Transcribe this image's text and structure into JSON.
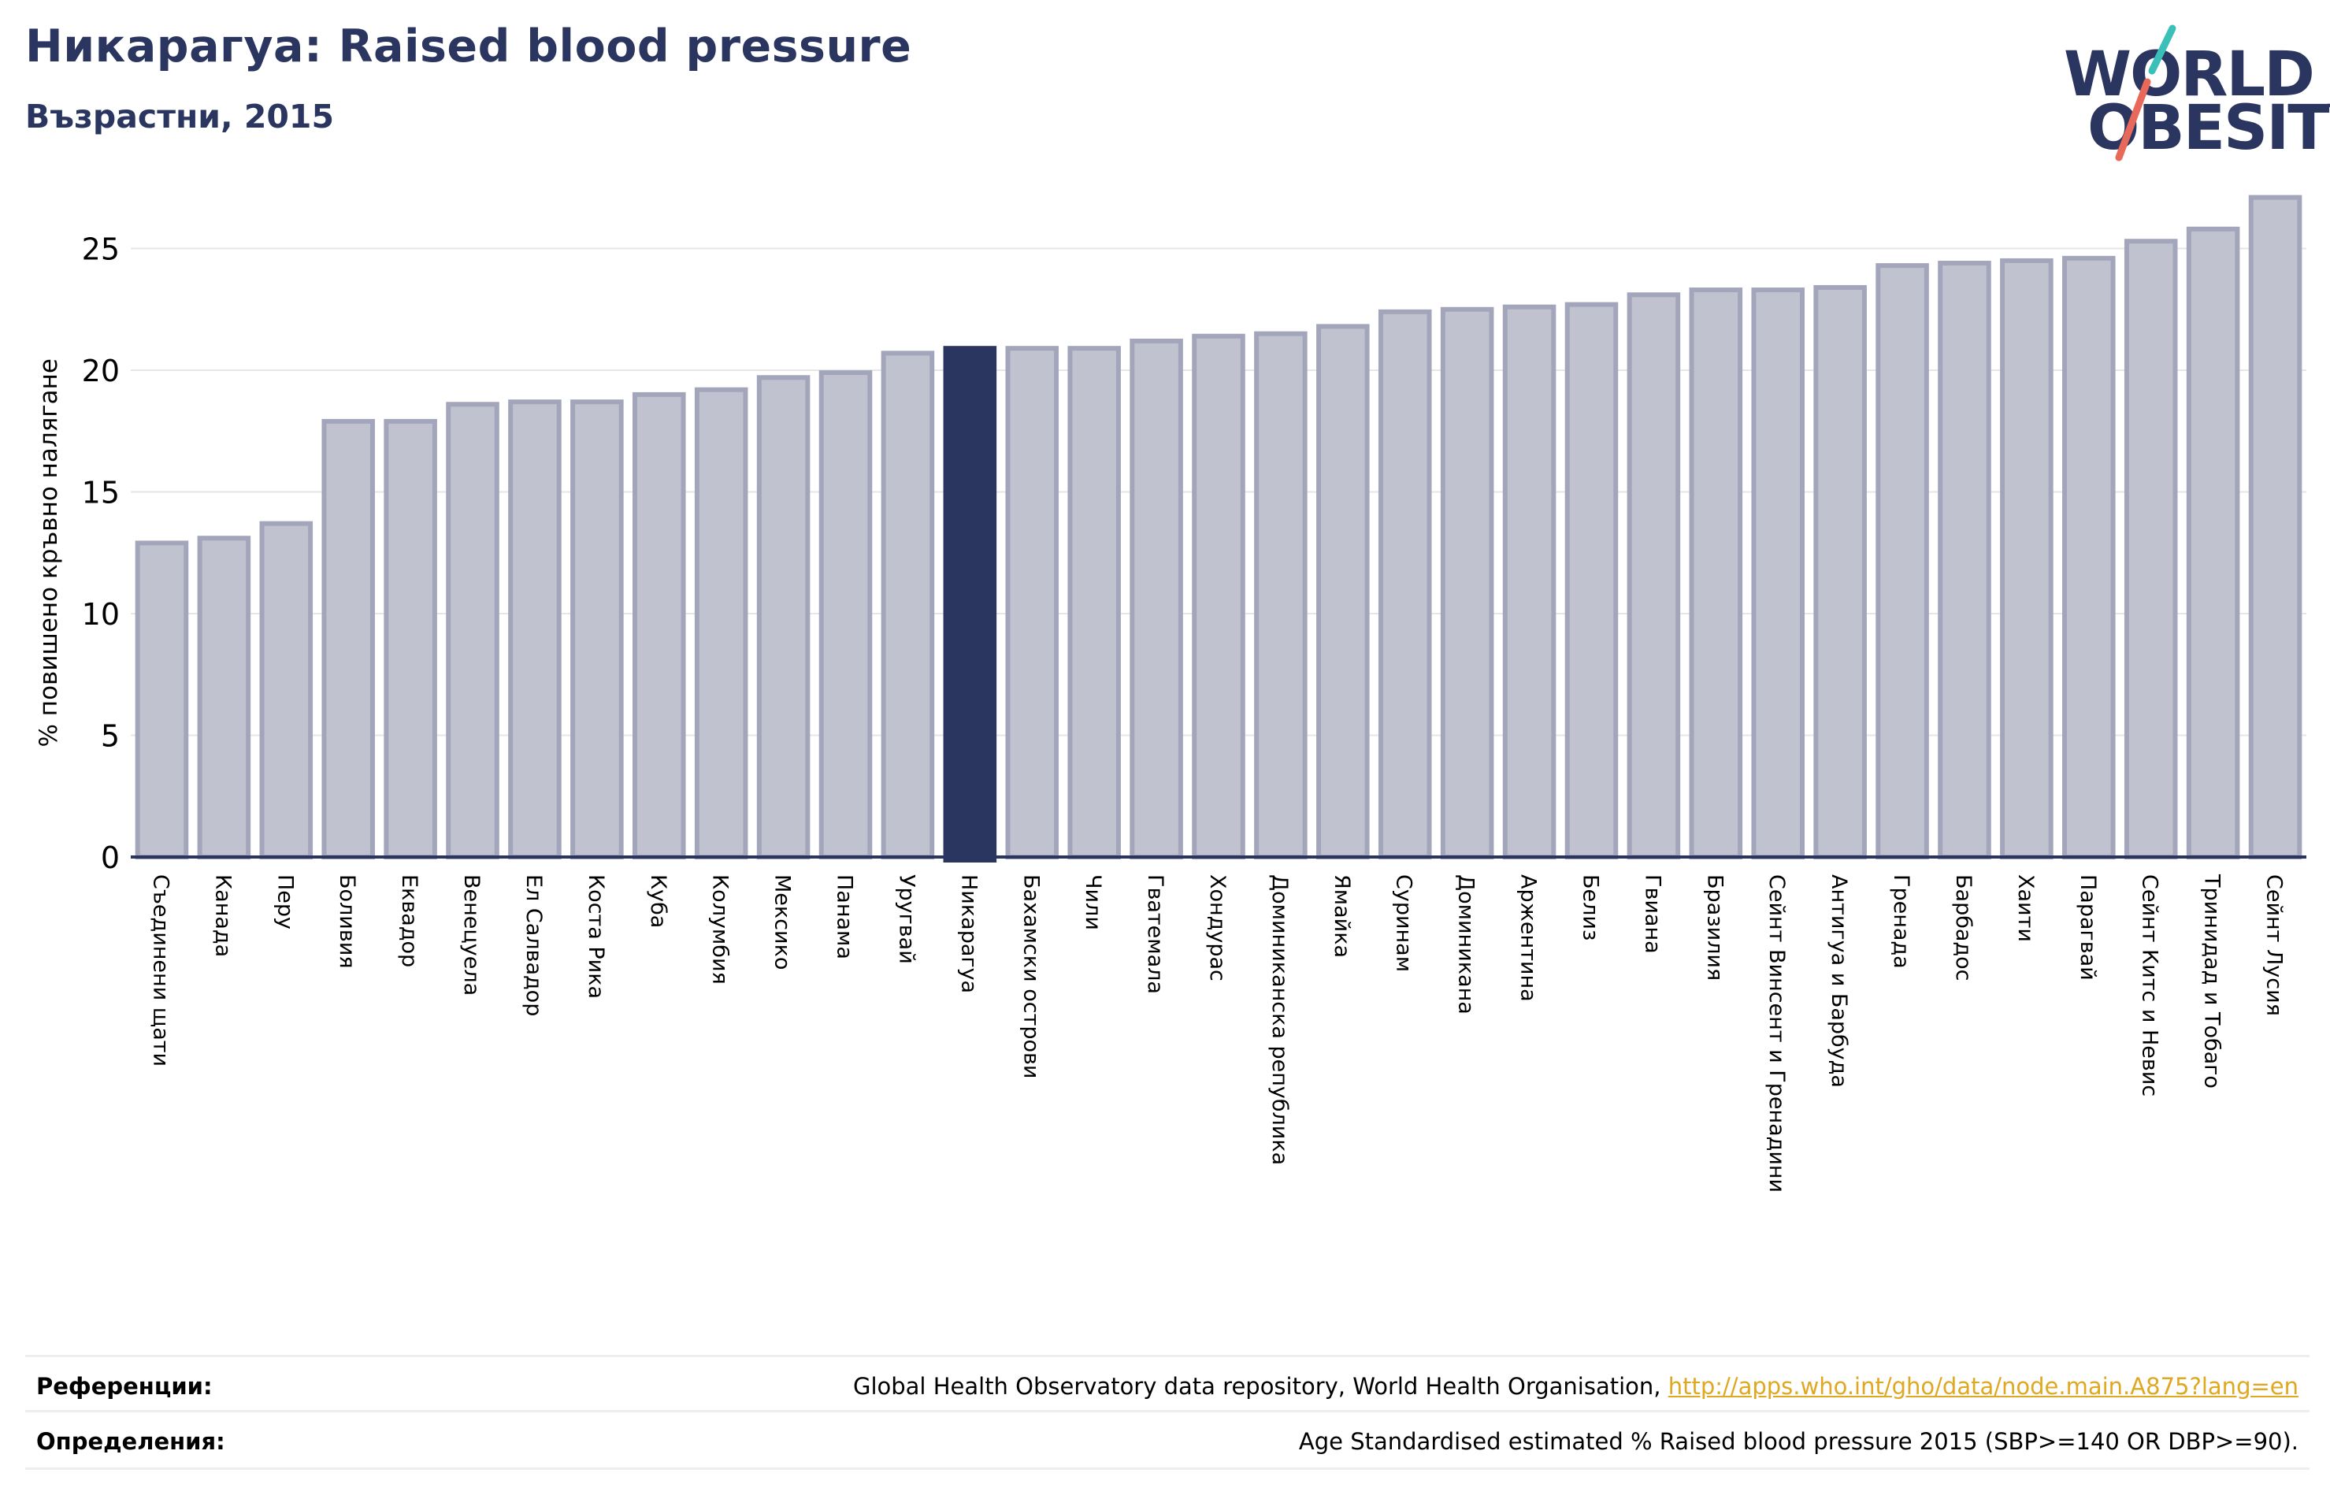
{
  "header": {
    "title": "Никарагуа: Raised blood pressure",
    "subtitle": "Възрастни, 2015"
  },
  "logo": {
    "line1": "WORLD",
    "line2": "OBESITY",
    "accent_teal": "#3bbfb9",
    "accent_coral": "#e8685a"
  },
  "colors": {
    "bar": "#c0c2cf",
    "bar_border": "#a3a6bb",
    "highlight": "#2a3560",
    "grid": "#e6e6e6",
    "axis": "#2a3560"
  },
  "chart_data": {
    "type": "bar",
    "title": "",
    "xlabel": "",
    "ylabel": "% повишено кръвно налягане",
    "ylim": [
      0,
      28
    ],
    "yticks": [
      0,
      5,
      10,
      15,
      20,
      25
    ],
    "grid": true,
    "highlight": "Никарагуа",
    "categories": [
      "Съединени щати",
      "Канада",
      "Перу",
      "Боливия",
      "Еквадор",
      "Венецуела",
      "Ел Салвадор",
      "Коста Рика",
      "Куба",
      "Колумбия",
      "Мексико",
      "Панама",
      "Уругвай",
      "Никарагуа",
      "Бахамски острови",
      "Чили",
      "Гватемала",
      "Хондурас",
      "Доминиканска република",
      "Ямайка",
      "Суринам",
      "Доминикана",
      "Аржентина",
      "Белиз",
      "Гвиана",
      "Бразилия",
      "Сейнт Винсент и Гренадини",
      "Антигуа и Барбуда",
      "Гренада",
      "Барбадос",
      "Хаити",
      "Парагвай",
      "Сейнт Китс и Невис",
      "Тринидад и Тобаго",
      "Сейнт Лусия"
    ],
    "values": [
      12.9,
      13.1,
      13.7,
      17.9,
      17.9,
      18.6,
      18.7,
      18.7,
      19.0,
      19.2,
      19.7,
      19.9,
      20.7,
      20.9,
      20.9,
      20.9,
      21.2,
      21.4,
      21.5,
      21.8,
      22.4,
      22.5,
      22.6,
      22.7,
      23.1,
      23.3,
      23.3,
      23.4,
      24.3,
      24.4,
      24.5,
      24.6,
      25.3,
      25.8,
      27.1
    ]
  },
  "references": {
    "ref_label": "Референции:",
    "ref_text": "Global Health Observatory data repository, World Health Organisation, ",
    "ref_link": "http://apps.who.int/gho/data/node.main.A875?lang=en",
    "def_label": "Определения:",
    "def_text": "Age Standardised estimated % Raised blood pressure 2015 (SBP>=140 OR DBP>=90)."
  }
}
